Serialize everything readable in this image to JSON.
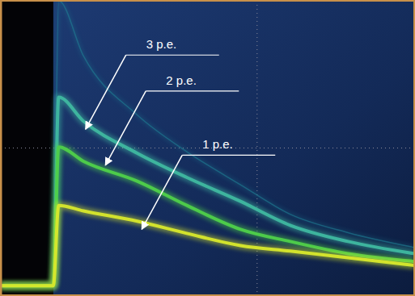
{
  "chart_data": {
    "type": "line",
    "x": [
      0,
      1.27,
      1.4,
      2,
      3.3,
      4.5,
      5.8,
      7,
      8.4,
      10
    ],
    "xlim": [
      0,
      10
    ],
    "ylim": [
      0,
      8
    ],
    "xticks": [
      6.2
    ],
    "yticks": [
      4
    ],
    "grid": true,
    "tick_labels": false,
    "series": [
      {
        "color": "#1f7f95",
        "values": [
          0.26,
          0.26,
          8,
          6.5,
          4.9,
          3.9,
          3.0,
          2.2,
          1.7,
          1.3
        ]
      },
      {
        "color": "#3fb8a0",
        "values": [
          0.26,
          0.26,
          5.38,
          4.73,
          3.86,
          3.2,
          2.55,
          1.9,
          1.46,
          1.13
        ]
      },
      {
        "color": "#4fd04a",
        "values": [
          0.26,
          0.26,
          4.03,
          3.64,
          3.1,
          2.44,
          1.79,
          1.46,
          1.13,
          0.92
        ]
      },
      {
        "color": "#d8e82c",
        "values": [
          0.26,
          0.26,
          2.44,
          2.29,
          2.01,
          1.68,
          1.35,
          1.2,
          1.02,
          0.81
        ]
      }
    ],
    "annotations": [
      {
        "text": "3 p.e.",
        "x": 2.05,
        "y": 4.51
      },
      {
        "text": "2 p.e.",
        "x": 2.53,
        "y": 3.53
      },
      {
        "text": "1 p.e.",
        "x": 3.41,
        "y": 1.79
      }
    ]
  }
}
